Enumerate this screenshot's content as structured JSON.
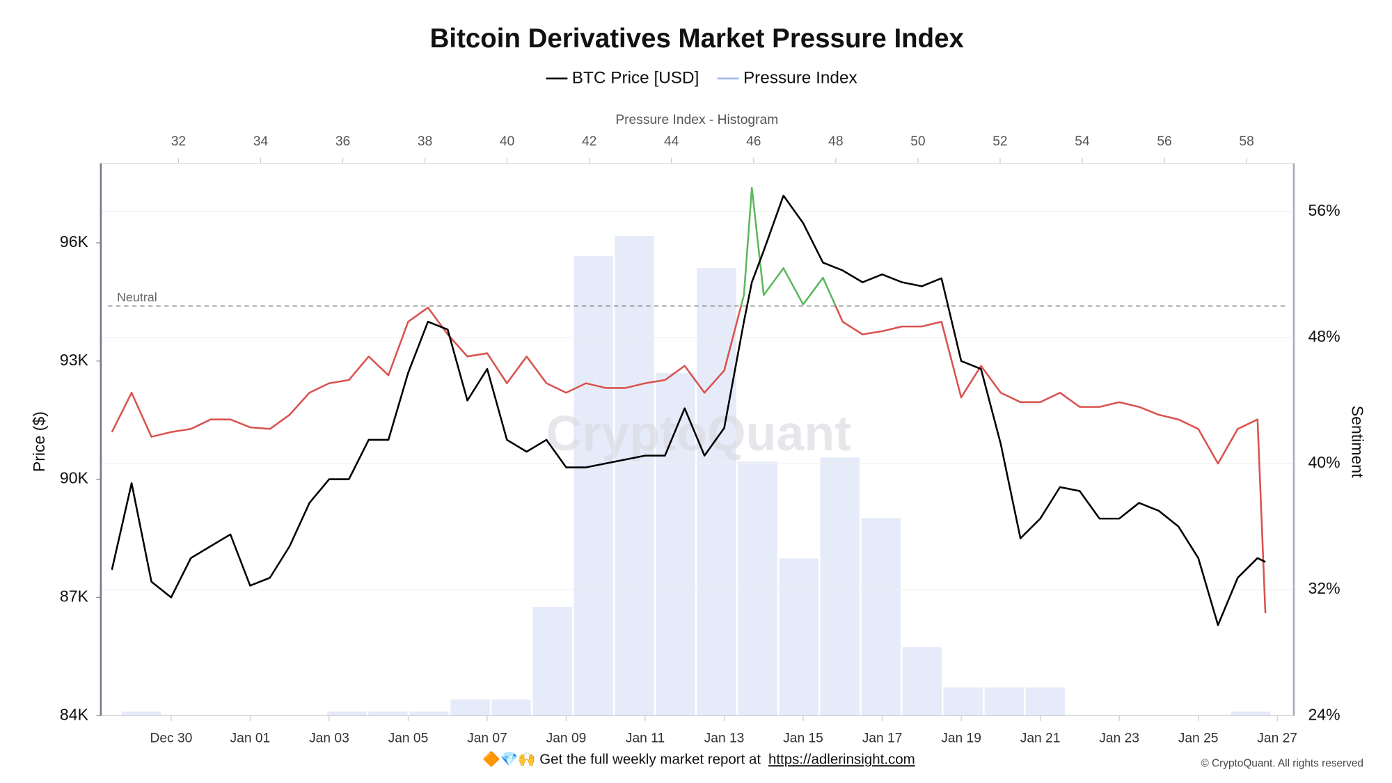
{
  "chart_data": [
    {
      "type": "line",
      "title": "Bitcoin Derivatives Market Pressure Index",
      "legend_position": "top",
      "ylabel": "Price ($)",
      "y2label": "Sentiment",
      "grid": true,
      "watermark": "CryptoQuant",
      "footer": "🔶💎🙌 Get the full weekly market report at",
      "footer_link": "https://adlerinsight.com",
      "credit": "© CryptoQuant. All rights reserved",
      "neutral": {
        "value": 50,
        "label": "Neutral"
      },
      "xlim": [
        0.22,
        30.42
      ],
      "xticks": [
        {
          "value": 2,
          "label": "Dec 30"
        },
        {
          "value": 4,
          "label": "Jan 01"
        },
        {
          "value": 6,
          "label": "Jan 03"
        },
        {
          "value": 8,
          "label": "Jan 05"
        },
        {
          "value": 10,
          "label": "Jan 07"
        },
        {
          "value": 12,
          "label": "Jan 09"
        },
        {
          "value": 14,
          "label": "Jan 11"
        },
        {
          "value": 16,
          "label": "Jan 13"
        },
        {
          "value": 18,
          "label": "Jan 15"
        },
        {
          "value": 20,
          "label": "Jan 17"
        },
        {
          "value": 22,
          "label": "Jan 19"
        },
        {
          "value": 24,
          "label": "Jan 21"
        },
        {
          "value": 26,
          "label": "Jan 23"
        },
        {
          "value": 28,
          "label": "Jan 25"
        },
        {
          "value": 30,
          "label": "Jan 27"
        }
      ],
      "ylim": [
        84000,
        98020
      ],
      "yticks": [
        {
          "value": 84000,
          "label": "84K"
        },
        {
          "value": 87000,
          "label": "87K"
        },
        {
          "value": 90000,
          "label": "90K"
        },
        {
          "value": 93000,
          "label": "93K"
        },
        {
          "value": 96000,
          "label": "96K"
        }
      ],
      "y2lim": [
        24,
        59.06
      ],
      "y2ticks": [
        {
          "value": 24,
          "label": "24%"
        },
        {
          "value": 32,
          "label": "32%"
        },
        {
          "value": 40,
          "label": "40%"
        },
        {
          "value": 48,
          "label": "48%"
        },
        {
          "value": 56,
          "label": "56%"
        }
      ],
      "x": [
        0.5,
        1,
        1.5,
        2,
        2.5,
        3,
        3.5,
        4,
        4.5,
        5,
        5.5,
        6,
        6.5,
        7,
        7.5,
        8,
        8.5,
        9,
        9.5,
        10,
        10.5,
        11,
        11.5,
        12,
        12.5,
        13,
        13.5,
        14,
        14.5,
        15,
        15.5,
        16,
        16.5,
        16.7,
        17,
        17.5,
        18,
        18.5,
        19,
        19.5,
        20,
        20.5,
        21,
        21.5,
        22,
        22.5,
        23,
        23.5,
        24,
        24.5,
        25,
        25.5,
        26,
        26.5,
        27,
        27.5,
        28,
        28.5,
        29,
        29.5,
        29.7
      ],
      "series": [
        {
          "name": "BTC Price [USD]",
          "color": "#000000",
          "values": [
            87700,
            89900,
            87400,
            87000,
            88000,
            88300,
            88600,
            87300,
            87500,
            88300,
            89400,
            90000,
            90000,
            91000,
            91000,
            92700,
            94000,
            93800,
            92000,
            92800,
            91000,
            90700,
            91000,
            90300,
            90300,
            90400,
            90500,
            90600,
            90600,
            91800,
            90600,
            91300,
            94000,
            95000,
            95800,
            97200,
            96500,
            95500,
            95300,
            95000,
            95200,
            95000,
            94900,
            95100,
            93000,
            92800,
            90900,
            88500,
            89000,
            89800,
            89700,
            89000,
            89000,
            89400,
            89200,
            88800,
            88000,
            86300,
            87500,
            88000,
            87900
          ]
        },
        {
          "name": "Pressure Index",
          "color": "#9db8ee",
          "axis": "y2",
          "color_above": "#5cb85c",
          "color_below": "#d9534f",
          "values": [
            42.0,
            44.5,
            41.7,
            42.0,
            42.2,
            42.8,
            42.8,
            42.3,
            42.2,
            43.1,
            44.5,
            45.1,
            45.3,
            46.8,
            45.6,
            49.0,
            49.9,
            48.2,
            46.8,
            47.0,
            45.1,
            46.8,
            45.1,
            44.5,
            45.1,
            44.8,
            44.8,
            45.1,
            45.3,
            46.2,
            44.5,
            45.9,
            50.7,
            57.5,
            50.7,
            52.4,
            50.1,
            51.8,
            49.0,
            48.2,
            48.4,
            48.7,
            48.7,
            49.0,
            44.2,
            46.2,
            44.5,
            43.9,
            43.9,
            44.5,
            43.6,
            43.6,
            43.9,
            43.6,
            43.1,
            42.8,
            42.2,
            40.0,
            42.2,
            42.8,
            30.5
          ]
        }
      ]
    },
    {
      "type": "histogram",
      "xlabel": "Pressure Index - Histogram",
      "color": "#e6ebfa",
      "xlim": [
        30.11,
        59.15
      ],
      "xticks": [
        32,
        34,
        36,
        38,
        40,
        42,
        44,
        46,
        48,
        50,
        52,
        54,
        56,
        58
      ],
      "ylim": [
        0,
        137
      ],
      "bins": [
        30.6,
        31.6,
        32.6,
        33.6,
        34.6,
        35.6,
        36.6,
        37.6,
        38.6,
        39.6,
        40.6,
        41.6,
        42.6,
        43.6,
        44.6,
        45.6,
        46.6,
        47.6,
        48.6,
        49.6,
        50.6,
        51.6,
        52.6,
        53.6,
        54.6,
        55.6,
        56.6,
        57.6,
        58.6
      ],
      "counts": [
        1,
        0,
        0,
        0,
        0,
        1,
        1,
        1,
        4,
        4,
        27,
        114,
        119,
        85,
        111,
        63,
        39,
        64,
        49,
        17,
        7,
        7,
        7,
        0,
        0,
        0,
        0,
        1
      ]
    }
  ]
}
